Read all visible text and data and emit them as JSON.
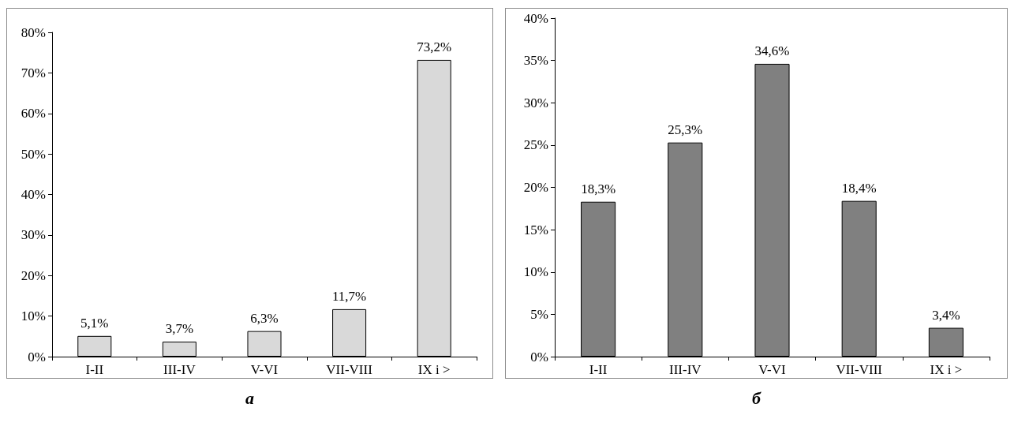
{
  "chart_data": [
    {
      "type": "bar",
      "title": "а",
      "categories": [
        "I-II",
        "III-IV",
        "V-VI",
        "VII-VIII",
        "IX і >"
      ],
      "values": [
        5.1,
        3.7,
        6.3,
        11.7,
        73.2
      ],
      "value_labels": [
        "5,1%",
        "3,7%",
        "6,3%",
        "11,7%",
        "73,2%"
      ],
      "color": "#d9d9d9",
      "ylim": [
        0,
        80
      ],
      "yticks": [
        {
          "value": 0,
          "label": "0%"
        },
        {
          "value": 10,
          "label": "10%"
        },
        {
          "value": 20,
          "label": "20%"
        },
        {
          "value": 30,
          "label": "30%"
        },
        {
          "value": 40,
          "label": "40%"
        },
        {
          "value": 50,
          "label": "50%"
        },
        {
          "value": 60,
          "label": "60%"
        },
        {
          "value": 70,
          "label": "70%"
        },
        {
          "value": 80,
          "label": "80%"
        }
      ],
      "grid": false
    },
    {
      "type": "bar",
      "title": "б",
      "categories": [
        "I-II",
        "III-IV",
        "V-VI",
        "VII-VIII",
        "IX і >"
      ],
      "values": [
        18.3,
        25.3,
        34.6,
        18.4,
        3.4
      ],
      "value_labels": [
        "18,3%",
        "25,3%",
        "34,6%",
        "18,4%",
        "3,4%"
      ],
      "color": "#808080",
      "ylim": [
        0,
        40
      ],
      "yticks": [
        {
          "value": 0,
          "label": "0%"
        },
        {
          "value": 5,
          "label": "5%"
        },
        {
          "value": 10,
          "label": "10%"
        },
        {
          "value": 15,
          "label": "15%"
        },
        {
          "value": 20,
          "label": "20%"
        },
        {
          "value": 25,
          "label": "25%"
        },
        {
          "value": 30,
          "label": "30%"
        },
        {
          "value": 35,
          "label": "35%"
        },
        {
          "value": 40,
          "label": "40%"
        }
      ],
      "grid": false
    }
  ]
}
